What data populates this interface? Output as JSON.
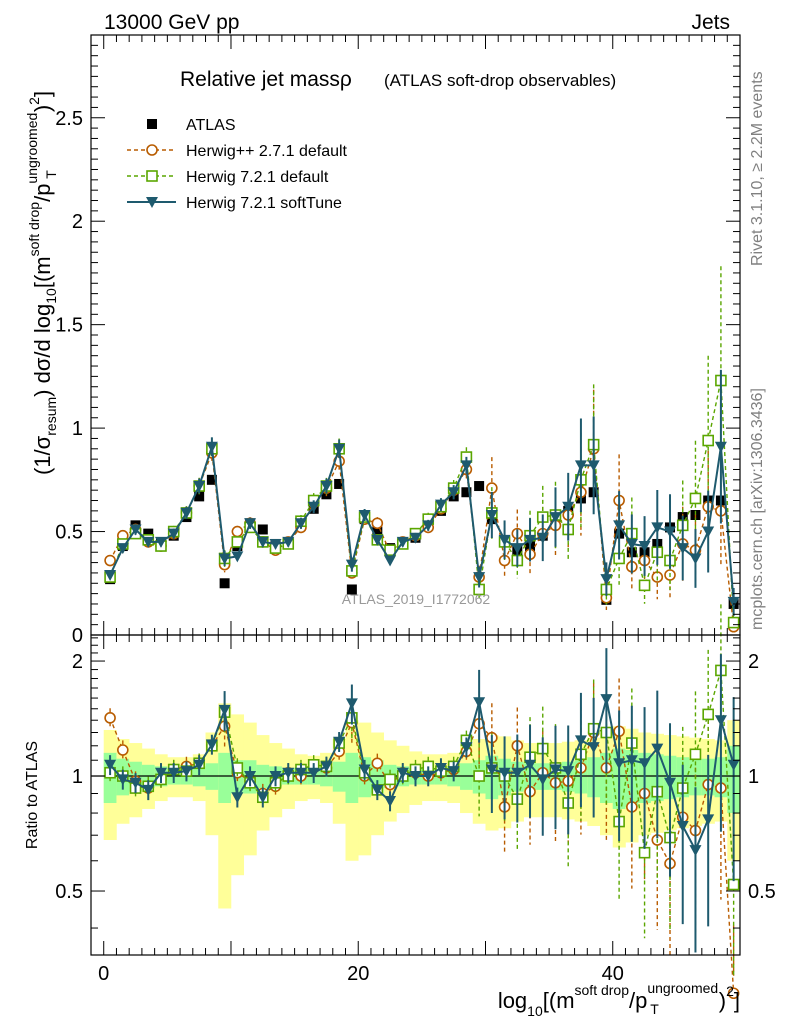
{
  "header": {
    "beam": "13000 GeV pp",
    "category": "Jets",
    "rivet": "Rivet 3.1.10, ≥ 2.2M events",
    "mcplots": "mcplots.cern.ch [arXiv:1306.3436]",
    "analysis_watermark": "ATLAS_2019_I1772062"
  },
  "chart_data": [
    {
      "type": "line",
      "title": "Relative jet massρ",
      "subtitle": "(ATLAS soft-drop observables)",
      "ylabel_main": "(1/σ",
      "ylabel_sub1": "resum",
      "ylabel_mid": ") dσ/d log",
      "ylabel_sub2": "10",
      "ylabel_tail": "[(m",
      "ylabel_sup1": "soft drop",
      "ylabel_slash": "/p",
      "ylabel_sup2": "ungroomed",
      "ylabel_sub3": "T",
      "ylabel_end": ")",
      "ylabel_sup3": "2",
      "ylabel_close": "]",
      "xlim": [
        -1,
        50
      ],
      "ylim": [
        0,
        2.9
      ],
      "yticks": [
        "0.5",
        "1",
        "1.5",
        "2",
        "2.5"
      ],
      "x": [
        0.5,
        1.5,
        2.5,
        3.5,
        4.5,
        5.5,
        6.5,
        7.5,
        8.5,
        9.5,
        10.5,
        11.5,
        12.5,
        13.5,
        14.5,
        15.5,
        16.5,
        17.5,
        18.5,
        19.5,
        20.5,
        21.5,
        22.5,
        23.5,
        24.5,
        25.5,
        26.5,
        27.5,
        28.5,
        29.5,
        30.5,
        31.5,
        32.5,
        33.5,
        34.5,
        35.5,
        36.5,
        37.5,
        38.5,
        39.5,
        40.5,
        41.5,
        42.5,
        43.5,
        44.5,
        45.5,
        46.5,
        47.5,
        48.5,
        49.5
      ],
      "series": [
        {
          "name": "ATLAS",
          "color": "#000000",
          "marker": "filled-square",
          "values": [
            0.27,
            0.43,
            0.53,
            0.49,
            0.44,
            0.48,
            0.57,
            0.67,
            0.75,
            0.25,
            0.43,
            0.54,
            0.51,
            0.44,
            0.44,
            0.53,
            0.61,
            0.68,
            0.73,
            0.22,
            0.56,
            0.5,
            0.42,
            0.44,
            0.47,
            0.53,
            0.6,
            0.67,
            0.69,
            0.72,
            0.56,
            0.45,
            0.41,
            0.43,
            0.48,
            0.55,
            0.6,
            0.66,
            0.69,
            0.17,
            0.49,
            0.4,
            0.4,
            0.44,
            0.52,
            0.57,
            0.58,
            0.65,
            0.65,
            0.15
          ]
        },
        {
          "name": "Herwig++ 2.7.1 default",
          "color": "#b85c00",
          "marker": "open-circle",
          "values": [
            0.36,
            0.48,
            0.51,
            0.45,
            0.43,
            0.49,
            0.59,
            0.72,
            0.88,
            0.34,
            0.5,
            0.54,
            0.45,
            0.41,
            0.45,
            0.52,
            0.64,
            0.71,
            0.84,
            0.3,
            0.56,
            0.54,
            0.4,
            0.45,
            0.48,
            0.52,
            0.61,
            0.7,
            0.8,
            0.28,
            0.71,
            0.36,
            0.49,
            0.39,
            0.49,
            0.53,
            0.58,
            0.69,
            0.9,
            0.18,
            0.65,
            0.33,
            0.36,
            0.28,
            0.29,
            0.44,
            0.41,
            0.62,
            0.6,
            0.04
          ]
        },
        {
          "name": "Herwig 7.2.1 default",
          "color": "#5aa600",
          "marker": "open-square",
          "values": [
            0.28,
            0.44,
            0.49,
            0.46,
            0.43,
            0.5,
            0.59,
            0.72,
            0.9,
            0.37,
            0.45,
            0.52,
            0.45,
            0.42,
            0.44,
            0.55,
            0.65,
            0.72,
            0.9,
            0.31,
            0.57,
            0.46,
            0.41,
            0.44,
            0.49,
            0.56,
            0.62,
            0.71,
            0.86,
            0.22,
            0.59,
            0.45,
            0.36,
            0.48,
            0.57,
            0.58,
            0.51,
            0.75,
            0.92,
            0.22,
            0.37,
            0.49,
            0.24,
            0.4,
            0.36,
            0.53,
            0.66,
            0.94,
            1.23,
            0.06
          ]
        },
        {
          "name": "Herwig 7.2.1 softTune",
          "color": "#1e5a6e",
          "marker": "filled-triangle-down",
          "values": [
            0.29,
            0.42,
            0.51,
            0.45,
            0.45,
            0.49,
            0.59,
            0.72,
            0.91,
            0.37,
            0.38,
            0.54,
            0.45,
            0.44,
            0.45,
            0.54,
            0.62,
            0.72,
            0.9,
            0.34,
            0.58,
            0.46,
            0.36,
            0.45,
            0.47,
            0.53,
            0.63,
            0.69,
            0.82,
            0.28,
            0.58,
            0.46,
            0.42,
            0.46,
            0.47,
            0.57,
            0.62,
            0.82,
            0.82,
            0.27,
            0.53,
            0.44,
            0.43,
            0.52,
            0.5,
            0.42,
            0.37,
            0.5,
            0.91,
            0.16
          ]
        }
      ]
    },
    {
      "type": "line",
      "ylabel": "Ratio to ATLAS",
      "xlabel_pre": "log",
      "xlabel_sub1": "10",
      "xlabel_mid": "[(m",
      "xlabel_sup1": "soft drop",
      "xlabel_slash": "/p",
      "xlabel_sup2": "ungroomed",
      "xlabel_sub2": "T",
      "xlabel_end": ")",
      "xlabel_sup3": "2",
      "xlabel_close": "]",
      "xlim": [
        -1,
        50
      ],
      "ylim": [
        0.34,
        2.34
      ],
      "yticks_left": [
        "0.5",
        "1",
        "2"
      ],
      "yticks_right": [
        "0.5",
        "1",
        "2"
      ],
      "xticks": [
        "0",
        "20",
        "40"
      ],
      "band_inner": [
        0.15,
        0.11,
        0.09,
        0.07,
        0.06,
        0.05,
        0.05,
        0.06,
        0.08,
        0.15,
        0.1,
        0.1,
        0.07,
        0.06,
        0.05,
        0.05,
        0.05,
        0.06,
        0.09,
        0.15,
        0.12,
        0.1,
        0.07,
        0.06,
        0.05,
        0.05,
        0.05,
        0.06,
        0.08,
        0.1,
        0.13,
        0.11,
        0.09,
        0.08,
        0.08,
        0.08,
        0.09,
        0.1,
        0.12,
        0.15,
        0.18,
        0.17,
        0.15,
        0.14,
        0.13,
        0.12,
        0.11,
        0.11,
        0.12,
        0.2
      ],
      "band_outer": [
        0.32,
        0.25,
        0.22,
        0.18,
        0.14,
        0.12,
        0.12,
        0.14,
        0.3,
        0.55,
        0.45,
        0.38,
        0.28,
        0.22,
        0.18,
        0.14,
        0.13,
        0.15,
        0.25,
        0.4,
        0.38,
        0.3,
        0.24,
        0.2,
        0.16,
        0.14,
        0.14,
        0.15,
        0.2,
        0.25,
        0.28,
        0.27,
        0.24,
        0.22,
        0.22,
        0.22,
        0.23,
        0.24,
        0.26,
        0.3,
        0.35,
        0.33,
        0.3,
        0.29,
        0.28,
        0.27,
        0.26,
        0.25,
        0.24,
        0.4
      ],
      "series": [
        {
          "name": "Herwig++ 2.7.1 default",
          "color": "#b85c00",
          "values": [
            1.42,
            1.17,
            0.97,
            0.93,
            0.98,
            1.04,
            1.06,
            1.08,
            1.2,
            1.35,
            1.02,
            0.97,
            0.9,
            0.94,
            1.02,
            1.0,
            1.05,
            1.05,
            1.16,
            1.38,
            1.0,
            1.08,
            0.95,
            1.02,
            1.02,
            1.0,
            1.02,
            1.04,
            1.16,
            1.37,
            1.26,
            0.83,
            1.2,
            0.91,
            1.02,
            0.96,
            0.97,
            1.05,
            1.3,
            1.05,
            1.31,
            0.83,
            0.9,
            0.68,
            0.59,
            0.78,
            0.72,
            0.95,
            0.93,
            0.27
          ]
        },
        {
          "name": "Herwig 7.2.1 default",
          "color": "#5aa600",
          "values": [
            1.02,
            1.0,
            0.93,
            0.94,
            0.98,
            1.04,
            1.03,
            1.08,
            1.2,
            1.47,
            1.05,
            0.96,
            0.88,
            0.96,
            1.0,
            1.04,
            1.07,
            1.06,
            1.22,
            1.42,
            1.02,
            0.92,
            0.98,
            1.0,
            1.04,
            1.06,
            1.03,
            1.06,
            1.24,
            1.0,
            1.05,
            1.0,
            0.87,
            1.12,
            1.18,
            1.05,
            0.85,
            1.14,
            1.33,
            1.3,
            0.76,
            1.22,
            0.63,
            0.91,
            0.69,
            0.93,
            1.14,
            1.45,
            1.89,
            0.52
          ]
        },
        {
          "name": "Herwig 7.2.1 softTune",
          "color": "#1e5a6e",
          "values": [
            1.07,
            0.98,
            0.96,
            0.92,
            1.02,
            1.02,
            1.03,
            1.07,
            1.21,
            1.49,
            0.88,
            1.0,
            0.88,
            1.0,
            1.02,
            1.02,
            1.02,
            1.06,
            1.23,
            1.55,
            1.04,
            0.92,
            0.86,
            1.02,
            1.0,
            1.0,
            1.05,
            1.03,
            1.19,
            1.56,
            1.04,
            1.02,
            1.02,
            1.07,
            0.98,
            1.04,
            1.03,
            1.24,
            1.19,
            1.59,
            1.08,
            1.1,
            1.08,
            1.18,
            0.96,
            0.74,
            0.64,
            0.77,
            1.4,
            1.07
          ]
        }
      ]
    }
  ]
}
